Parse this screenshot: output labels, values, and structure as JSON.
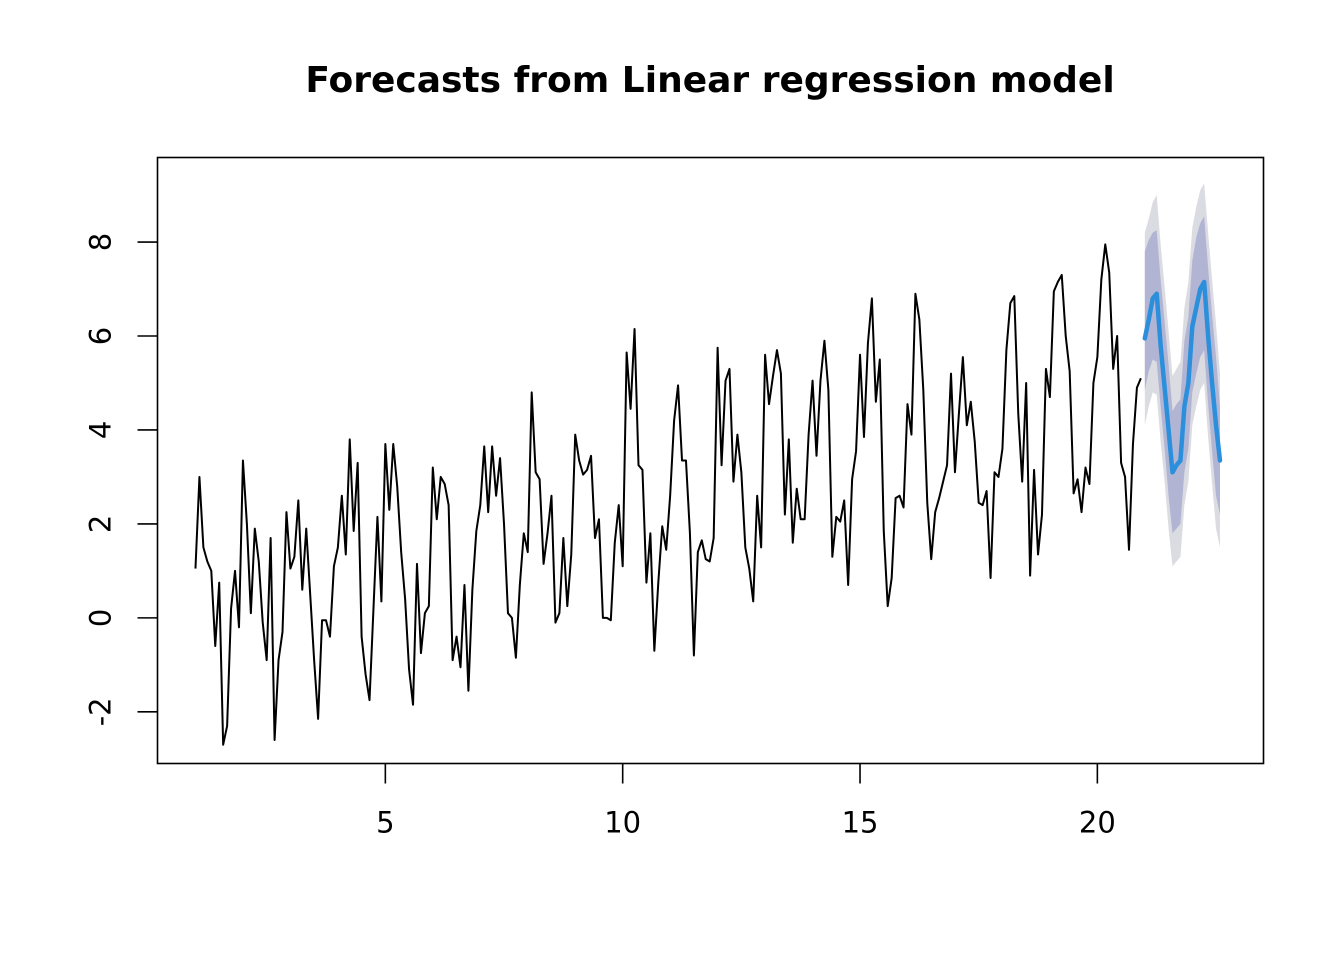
{
  "chart_data": {
    "type": "line",
    "title": "Forecasts from Linear regression model",
    "xlabel": "",
    "ylabel": "",
    "xlim": [
      0.2,
      23.5
    ],
    "ylim": [
      -3.1,
      9.8
    ],
    "x_ticks": [
      5,
      10,
      15,
      20
    ],
    "x_tick_labels": [
      "5",
      "10",
      "15",
      "20"
    ],
    "y_ticks": [
      -2,
      0,
      2,
      4,
      6,
      8
    ],
    "y_tick_labels": [
      "-2",
      "0",
      "2",
      "4",
      "6",
      "8"
    ],
    "grid": false,
    "legend": "none",
    "series": [
      {
        "role": "observed",
        "color": "#000000",
        "x_start": 1.0,
        "x_step": 0.0833333,
        "values": [
          1.05,
          3.0,
          1.5,
          1.2,
          1.0,
          -0.6,
          0.75,
          -2.7,
          -2.3,
          0.2,
          1.0,
          -0.2,
          3.35,
          2.0,
          0.1,
          1.9,
          1.2,
          -0.1,
          -0.9,
          1.7,
          -2.6,
          -0.9,
          -0.3,
          2.25,
          1.05,
          1.3,
          2.5,
          0.6,
          1.9,
          0.5,
          -0.9,
          -2.15,
          -0.05,
          -0.05,
          -0.4,
          1.1,
          1.5,
          2.6,
          1.35,
          3.8,
          1.85,
          3.3,
          -0.4,
          -1.2,
          -1.75,
          0.2,
          2.15,
          0.35,
          3.7,
          2.3,
          3.7,
          2.8,
          1.4,
          0.4,
          -1.1,
          -1.85,
          1.15,
          -0.75,
          0.1,
          0.25,
          3.2,
          2.1,
          3.0,
          2.85,
          2.4,
          -0.9,
          -0.4,
          -1.05,
          0.7,
          -1.55,
          0.6,
          1.85,
          2.4,
          3.65,
          2.25,
          3.65,
          2.6,
          3.4,
          2.0,
          0.1,
          0.0,
          -0.85,
          0.7,
          1.8,
          1.4,
          4.8,
          3.1,
          2.95,
          1.15,
          1.8,
          2.6,
          -0.1,
          0.1,
          1.7,
          0.25,
          1.35,
          3.9,
          3.35,
          3.05,
          3.15,
          3.45,
          1.7,
          2.1,
          0.0,
          0.0,
          -0.05,
          1.6,
          2.4,
          1.1,
          5.65,
          4.45,
          6.15,
          3.25,
          3.15,
          0.75,
          1.8,
          -0.7,
          0.75,
          1.95,
          1.45,
          2.6,
          4.2,
          4.95,
          3.35,
          3.35,
          1.8,
          -0.8,
          1.4,
          1.65,
          1.25,
          1.2,
          1.7,
          5.75,
          3.25,
          5.05,
          5.3,
          2.9,
          3.9,
          3.1,
          1.5,
          1.05,
          0.35,
          2.6,
          1.5,
          5.6,
          4.55,
          5.15,
          5.7,
          5.2,
          2.2,
          3.8,
          1.6,
          2.75,
          2.1,
          2.1,
          3.9,
          5.05,
          3.45,
          5.05,
          5.9,
          4.85,
          1.3,
          2.15,
          2.05,
          2.5,
          0.7,
          2.95,
          3.55,
          5.6,
          3.85,
          5.85,
          6.8,
          4.6,
          5.5,
          1.85,
          0.25,
          0.85,
          2.55,
          2.6,
          2.35,
          4.55,
          3.9,
          6.9,
          6.35,
          4.85,
          2.45,
          1.25,
          2.25,
          2.55,
          2.9,
          3.25,
          5.2,
          3.1,
          4.35,
          5.55,
          4.1,
          4.6,
          3.75,
          2.45,
          2.4,
          2.7,
          0.85,
          3.1,
          3.0,
          3.6,
          5.7,
          6.7,
          6.85,
          4.35,
          2.9,
          5.0,
          0.9,
          3.15,
          1.35,
          2.2,
          5.3,
          4.7,
          6.95,
          7.15,
          7.3,
          6.0,
          5.25,
          2.65,
          2.95,
          2.25,
          3.2,
          2.85,
          5.0,
          5.55,
          7.2,
          7.95,
          7.35,
          5.3,
          6.0,
          3.3,
          3.0,
          1.45,
          3.7,
          4.9,
          5.1
        ]
      },
      {
        "role": "forecast",
        "color": "#2b8fdb",
        "x": [
          21.0,
          21.083,
          21.167,
          21.25,
          21.333,
          21.417,
          21.5,
          21.583,
          21.667,
          21.75,
          21.833,
          21.917,
          22.0,
          22.083,
          22.167,
          22.25,
          22.333,
          22.417,
          22.5,
          22.583
        ],
        "values": [
          5.95,
          6.35,
          6.8,
          6.9,
          5.8,
          4.9,
          4.0,
          3.1,
          3.25,
          3.35,
          4.5,
          5.0,
          6.2,
          6.6,
          7.0,
          7.15,
          6.0,
          5.0,
          4.1,
          3.35
        ],
        "lower80": [
          4.85,
          5.25,
          5.5,
          5.45,
          4.5,
          3.6,
          2.6,
          1.8,
          1.9,
          2.0,
          3.1,
          3.6,
          4.8,
          5.2,
          5.55,
          5.7,
          4.55,
          3.55,
          2.6,
          2.2
        ],
        "upper80": [
          7.8,
          8.05,
          8.2,
          8.25,
          7.2,
          6.3,
          5.4,
          4.4,
          4.55,
          4.65,
          5.9,
          6.4,
          7.6,
          8.1,
          8.4,
          8.55,
          7.45,
          6.45,
          5.55,
          4.5
        ],
        "lower95": [
          4.1,
          4.5,
          4.8,
          4.75,
          3.75,
          2.9,
          1.9,
          1.1,
          1.2,
          1.3,
          2.4,
          2.9,
          4.1,
          4.5,
          4.85,
          5.0,
          3.85,
          2.85,
          1.9,
          1.5
        ],
        "upper95": [
          8.2,
          8.5,
          8.85,
          9.0,
          7.95,
          7.05,
          6.1,
          5.15,
          5.3,
          5.45,
          6.6,
          7.15,
          8.3,
          8.75,
          9.1,
          9.25,
          8.2,
          7.2,
          6.25,
          5.2
        ]
      }
    ],
    "band_colors": {
      "pi95": "#dbdbe2",
      "pi80": "#b1b5d3"
    }
  }
}
